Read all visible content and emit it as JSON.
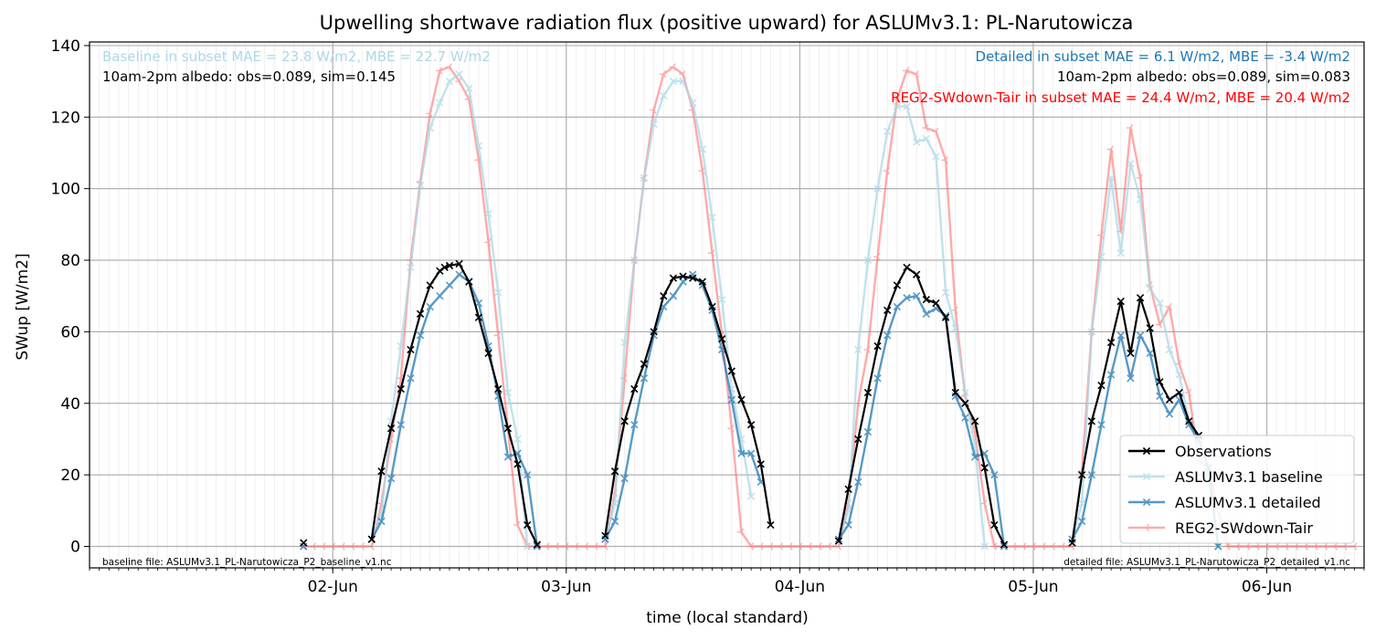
{
  "chart_data": {
    "type": "line",
    "title": "Upwelling shortwave radiation flux (positive upward) for ASLUMv3.1: PL-Narutowicza",
    "xlabel": "time (local standard)",
    "ylabel": "SWup [W/m2]",
    "x_unit": "hours since 02-Jun 00:00 (local standard)",
    "xlim": [
      -25,
      106
    ],
    "ylim": [
      -6,
      141
    ],
    "xticks": [
      {
        "value": 0,
        "label": "02-Jun"
      },
      {
        "value": 24,
        "label": "03-Jun"
      },
      {
        "value": 48,
        "label": "04-Jun"
      },
      {
        "value": 72,
        "label": "05-Jun"
      },
      {
        "value": 96,
        "label": "06-Jun"
      }
    ],
    "yticks": [
      0,
      20,
      40,
      60,
      80,
      100,
      120,
      140
    ],
    "grid": true,
    "legend_position": "lower-right",
    "annotations": {
      "baseline_stats": "Baseline in subset MAE = 23.8 W/m2, MBE = 22.7 W/m2",
      "baseline_albedo": "10am-2pm albedo: obs=0.089, sim=0.145",
      "detailed_stats": "Detailed in subset MAE = 6.1 W/m2, MBE = -3.4 W/m2",
      "detailed_albedo": "10am-2pm albedo: obs=0.089, sim=0.083",
      "reg2_stats": "REG2-SWdown-Tair in subset MAE = 24.4 W/m2, MBE = 20.4 W/m2",
      "baseline_file": "baseline file: ASLUMv3.1_PL-Narutowicza_P2_baseline_v1.nc",
      "detailed_file": "detailed file: ASLUMv3.1_PL-Narutowicza_P2_detailed_v1.nc"
    },
    "annotation_colors": {
      "baseline_stats": "#add8e6",
      "detailed_stats": "#1f77b4",
      "reg2_stats": "#ff0000"
    },
    "series": [
      {
        "name": "Observations",
        "color": "#000000",
        "marker": "x",
        "alpha": 1.0,
        "points": [
          [
            -3,
            1
          ],
          [
            4,
            2
          ],
          [
            5,
            21
          ],
          [
            6,
            33
          ],
          [
            7,
            44
          ],
          [
            8,
            55
          ],
          [
            9,
            65
          ],
          [
            10,
            73
          ],
          [
            11,
            77
          ],
          [
            11.5,
            78
          ],
          [
            12,
            78.5
          ],
          [
            13,
            79
          ],
          [
            14,
            74
          ],
          [
            15,
            64
          ],
          [
            16,
            54
          ],
          [
            17,
            44
          ],
          [
            18,
            33
          ],
          [
            19,
            23
          ],
          [
            20,
            6
          ],
          [
            21,
            0.5
          ],
          [
            28,
            3
          ],
          [
            29,
            21
          ],
          [
            30,
            35
          ],
          [
            31,
            44
          ],
          [
            32,
            51
          ],
          [
            33,
            60
          ],
          [
            34,
            70
          ],
          [
            35,
            75
          ],
          [
            36,
            75.5
          ],
          [
            37,
            75
          ],
          [
            38,
            74
          ],
          [
            39,
            67
          ],
          [
            40,
            58
          ],
          [
            41,
            49
          ],
          [
            42,
            41
          ],
          [
            43,
            34
          ],
          [
            44,
            23
          ],
          [
            45,
            6
          ],
          [
            52,
            1.5
          ],
          [
            53,
            16
          ],
          [
            54,
            30
          ],
          [
            55,
            43
          ],
          [
            56,
            56
          ],
          [
            57,
            66
          ],
          [
            58,
            73
          ],
          [
            59,
            78
          ],
          [
            60,
            76
          ],
          [
            61,
            69
          ],
          [
            62,
            68
          ],
          [
            63,
            64
          ],
          [
            64,
            43
          ],
          [
            65,
            40
          ],
          [
            66,
            35
          ],
          [
            67,
            22
          ],
          [
            68,
            6
          ],
          [
            69,
            0.5
          ],
          [
            76,
            1
          ],
          [
            77,
            20
          ],
          [
            78,
            35
          ],
          [
            79,
            45
          ],
          [
            80,
            57
          ],
          [
            81,
            68.5
          ],
          [
            82,
            54
          ],
          [
            83,
            69.5
          ],
          [
            84,
            61
          ],
          [
            85,
            46
          ],
          [
            86,
            41
          ],
          [
            87,
            43
          ],
          [
            88,
            35
          ],
          [
            89,
            31
          ]
        ]
      },
      {
        "name": "ASLUMv3.1 baseline",
        "color": "#add8e6",
        "marker": "x",
        "alpha": 0.75,
        "points": [
          [
            -3,
            0
          ],
          [
            4,
            2
          ],
          [
            5,
            9
          ],
          [
            6,
            35
          ],
          [
            7,
            56
          ],
          [
            8,
            78
          ],
          [
            9,
            101
          ],
          [
            10,
            117
          ],
          [
            11,
            124
          ],
          [
            12,
            130
          ],
          [
            13,
            132
          ],
          [
            14,
            128
          ],
          [
            15,
            112
          ],
          [
            16,
            93
          ],
          [
            17,
            71
          ],
          [
            18,
            43
          ],
          [
            19,
            30
          ],
          [
            20,
            0
          ],
          [
            28,
            2
          ],
          [
            29,
            12
          ],
          [
            30,
            57
          ],
          [
            31,
            80
          ],
          [
            32,
            103
          ],
          [
            33,
            118
          ],
          [
            34,
            126
          ],
          [
            35,
            130
          ],
          [
            36,
            130
          ],
          [
            37,
            124
          ],
          [
            38,
            111
          ],
          [
            39,
            92
          ],
          [
            40,
            69
          ],
          [
            41,
            44
          ],
          [
            42,
            30
          ],
          [
            43,
            14
          ],
          [
            52,
            2
          ],
          [
            53,
            10
          ],
          [
            54,
            55
          ],
          [
            55,
            80
          ],
          [
            56,
            100
          ],
          [
            57,
            116
          ],
          [
            58,
            123
          ],
          [
            59,
            123
          ],
          [
            60,
            113
          ],
          [
            61,
            114
          ],
          [
            62,
            109
          ],
          [
            63,
            71
          ],
          [
            64,
            61
          ],
          [
            65,
            43
          ],
          [
            66,
            28
          ],
          [
            67,
            0
          ],
          [
            76,
            2
          ],
          [
            77,
            12
          ],
          [
            78,
            60
          ],
          [
            79,
            81
          ],
          [
            80,
            103
          ],
          [
            81,
            82
          ],
          [
            82,
            107
          ],
          [
            83,
            97
          ],
          [
            84,
            72
          ],
          [
            85,
            68
          ],
          [
            86,
            55
          ],
          [
            87,
            48
          ],
          [
            88,
            35
          ],
          [
            89,
            27
          ],
          [
            90,
            20
          ],
          [
            91,
            0
          ]
        ]
      },
      {
        "name": "ASLUMv3.1 detailed",
        "color": "#1f77b4",
        "marker": "x",
        "alpha": 0.75,
        "points": [
          [
            -3,
            0
          ],
          [
            4,
            2
          ],
          [
            5,
            7
          ],
          [
            6,
            19
          ],
          [
            7,
            34
          ],
          [
            8,
            47
          ],
          [
            9,
            59
          ],
          [
            10,
            67
          ],
          [
            11,
            70
          ],
          [
            12,
            73
          ],
          [
            13,
            76
          ],
          [
            14,
            74
          ],
          [
            15,
            68
          ],
          [
            16,
            56
          ],
          [
            17,
            42
          ],
          [
            18,
            25
          ],
          [
            19,
            26
          ],
          [
            20,
            20
          ],
          [
            21,
            0
          ],
          [
            28,
            2
          ],
          [
            29,
            7
          ],
          [
            30,
            19
          ],
          [
            31,
            34
          ],
          [
            32,
            47
          ],
          [
            33,
            59
          ],
          [
            34,
            67
          ],
          [
            35,
            70
          ],
          [
            36,
            74
          ],
          [
            37,
            76
          ],
          [
            38,
            73
          ],
          [
            39,
            66
          ],
          [
            40,
            55
          ],
          [
            41,
            41
          ],
          [
            42,
            26
          ],
          [
            43,
            26
          ],
          [
            44,
            18
          ],
          [
            52,
            2
          ],
          [
            53,
            6
          ],
          [
            54,
            18
          ],
          [
            55,
            32
          ],
          [
            56,
            47
          ],
          [
            57,
            59
          ],
          [
            58,
            67
          ],
          [
            59,
            69.5
          ],
          [
            60,
            70
          ],
          [
            61,
            65
          ],
          [
            62,
            66.5
          ],
          [
            63,
            64.5
          ],
          [
            64,
            42
          ],
          [
            65,
            36
          ],
          [
            66,
            25
          ],
          [
            67,
            26
          ],
          [
            68,
            20
          ],
          [
            69,
            0
          ],
          [
            76,
            2
          ],
          [
            77,
            7
          ],
          [
            78,
            20
          ],
          [
            79,
            34
          ],
          [
            80,
            48
          ],
          [
            81,
            59
          ],
          [
            82,
            47
          ],
          [
            83,
            59
          ],
          [
            84,
            54
          ],
          [
            85,
            42
          ],
          [
            86,
            37
          ],
          [
            87,
            41
          ],
          [
            88,
            34
          ],
          [
            89,
            30
          ],
          [
            90,
            22
          ],
          [
            91,
            0
          ]
        ]
      },
      {
        "name": "REG2-SWdown-Tair",
        "color": "#ff6666",
        "marker": "tri",
        "alpha": 0.55,
        "points": [
          [
            -3,
            0
          ],
          [
            -2,
            0
          ],
          [
            -1,
            0
          ],
          [
            0,
            0
          ],
          [
            1,
            0
          ],
          [
            2,
            0
          ],
          [
            3,
            0
          ],
          [
            4,
            0
          ],
          [
            5,
            12
          ],
          [
            6,
            30
          ],
          [
            7,
            47
          ],
          [
            8,
            80
          ],
          [
            9,
            102
          ],
          [
            10,
            121
          ],
          [
            11,
            133
          ],
          [
            12,
            134
          ],
          [
            13,
            130
          ],
          [
            14,
            125
          ],
          [
            15,
            108
          ],
          [
            16,
            85
          ],
          [
            17,
            59
          ],
          [
            18,
            33
          ],
          [
            19,
            6
          ],
          [
            20,
            0
          ],
          [
            21,
            0
          ],
          [
            22,
            0
          ],
          [
            23,
            0
          ],
          [
            24,
            0
          ],
          [
            25,
            0
          ],
          [
            26,
            0
          ],
          [
            27,
            0
          ],
          [
            28,
            0
          ],
          [
            29,
            15
          ],
          [
            30,
            47
          ],
          [
            31,
            80
          ],
          [
            32,
            103
          ],
          [
            33,
            122
          ],
          [
            34,
            132
          ],
          [
            35,
            134
          ],
          [
            36,
            132
          ],
          [
            37,
            122
          ],
          [
            38,
            105
          ],
          [
            39,
            82
          ],
          [
            40,
            59
          ],
          [
            41,
            33
          ],
          [
            42,
            4
          ],
          [
            43,
            0
          ],
          [
            44,
            0
          ],
          [
            45,
            0
          ],
          [
            46,
            0
          ],
          [
            47,
            0
          ],
          [
            48,
            0
          ],
          [
            49,
            0
          ],
          [
            50,
            0
          ],
          [
            51,
            0
          ],
          [
            52,
            0
          ],
          [
            53,
            12
          ],
          [
            54,
            40
          ],
          [
            55,
            55
          ],
          [
            56,
            81
          ],
          [
            57,
            105
          ],
          [
            58,
            125
          ],
          [
            59,
            133
          ],
          [
            60,
            132
          ],
          [
            61,
            117
          ],
          [
            62,
            116
          ],
          [
            63,
            108
          ],
          [
            64,
            66
          ],
          [
            65,
            42
          ],
          [
            66,
            32
          ],
          [
            67,
            12
          ],
          [
            68,
            0
          ],
          [
            69,
            0
          ],
          [
            70,
            0
          ],
          [
            71,
            0
          ],
          [
            72,
            0
          ],
          [
            73,
            0
          ],
          [
            74,
            0
          ],
          [
            75,
            0
          ],
          [
            76,
            0
          ],
          [
            77,
            21
          ],
          [
            78,
            60
          ],
          [
            79,
            87
          ],
          [
            80,
            111
          ],
          [
            81,
            88
          ],
          [
            82,
            117
          ],
          [
            83,
            103
          ],
          [
            84,
            73
          ],
          [
            85,
            62
          ],
          [
            86,
            67
          ],
          [
            87,
            51
          ],
          [
            88,
            43
          ],
          [
            89,
            24
          ],
          [
            90,
            22
          ],
          [
            91,
            10
          ],
          [
            92,
            0
          ],
          [
            93,
            0
          ],
          [
            94,
            0
          ],
          [
            95,
            0
          ],
          [
            96,
            0
          ],
          [
            97,
            0
          ],
          [
            98,
            0
          ],
          [
            99,
            0
          ],
          [
            100,
            0
          ],
          [
            101,
            0
          ],
          [
            102,
            0
          ],
          [
            103,
            0
          ],
          [
            104,
            0
          ],
          [
            105,
            0
          ]
        ]
      }
    ]
  }
}
